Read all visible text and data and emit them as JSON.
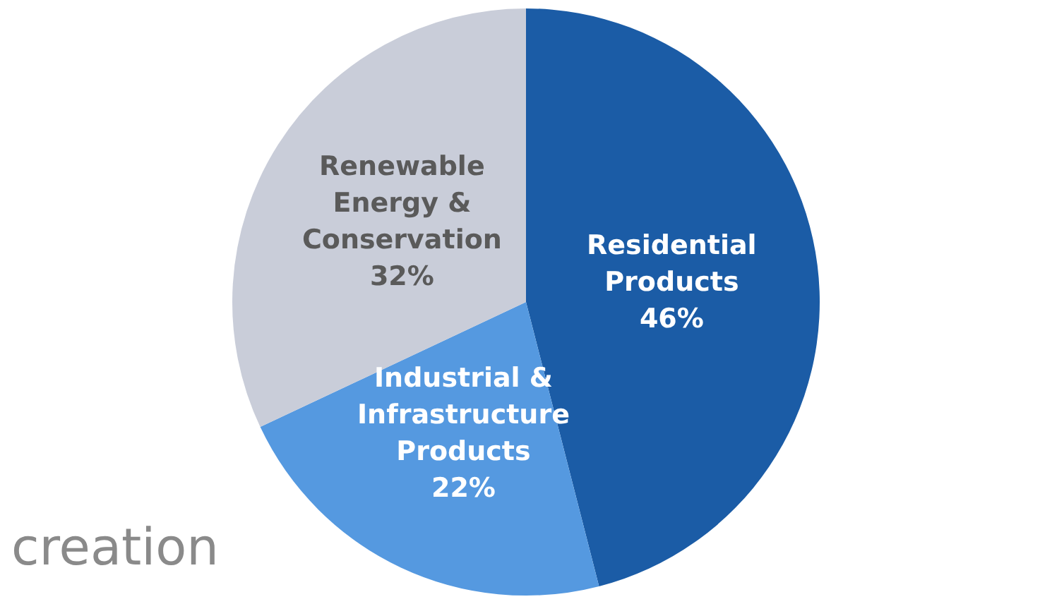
{
  "chart_data": {
    "type": "pie",
    "categories": [
      "Residential Products",
      "Industrial & Infrastructure Products",
      "Renewable Energy & Conservation"
    ],
    "values": [
      46,
      22,
      32
    ],
    "value_labels": [
      "46%",
      "22%",
      "32%"
    ],
    "colors": [
      "#1b5ca6",
      "#5599e0",
      "#c9cdd9"
    ],
    "legend": false,
    "annotations": [
      "creation"
    ]
  }
}
